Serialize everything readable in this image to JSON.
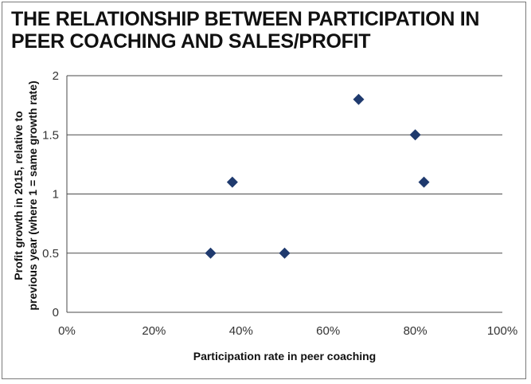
{
  "title": "THE RELATIONSHIP BETWEEN PARTICIPATION IN PEER COACHING AND SALES/PROFIT",
  "colors": {
    "marker": "#1f3a6e",
    "gridline": "#4a4a4a",
    "frame": "#7a7a7a"
  },
  "chart_data": {
    "type": "scatter",
    "title": "THE RELATIONSHIP BETWEEN PARTICIPATION IN PEER COACHING AND SALES/PROFIT",
    "xlabel": "Participation rate in peer coaching",
    "ylabel_lines": [
      "Profit growth in 2015, relative to",
      "previous year (where 1 = same growth rate)"
    ],
    "xlim": [
      0,
      1
    ],
    "ylim": [
      0,
      2
    ],
    "x_ticks": [
      0,
      0.2,
      0.4,
      0.6,
      0.8,
      1.0
    ],
    "x_tick_labels": [
      "0%",
      "20%",
      "40%",
      "60%",
      "80%",
      "100%"
    ],
    "y_ticks": [
      0,
      0.5,
      1,
      1.5,
      2
    ],
    "y_tick_labels": [
      "0",
      "0.5",
      "1",
      "1.5",
      "2"
    ],
    "grid": "horizontal",
    "legend": "none",
    "marker": "diamond",
    "points": [
      {
        "x": 0.33,
        "y": 0.5
      },
      {
        "x": 0.38,
        "y": 1.1
      },
      {
        "x": 0.5,
        "y": 0.5
      },
      {
        "x": 0.67,
        "y": 1.8
      },
      {
        "x": 0.8,
        "y": 1.5
      },
      {
        "x": 0.82,
        "y": 1.1
      }
    ]
  }
}
